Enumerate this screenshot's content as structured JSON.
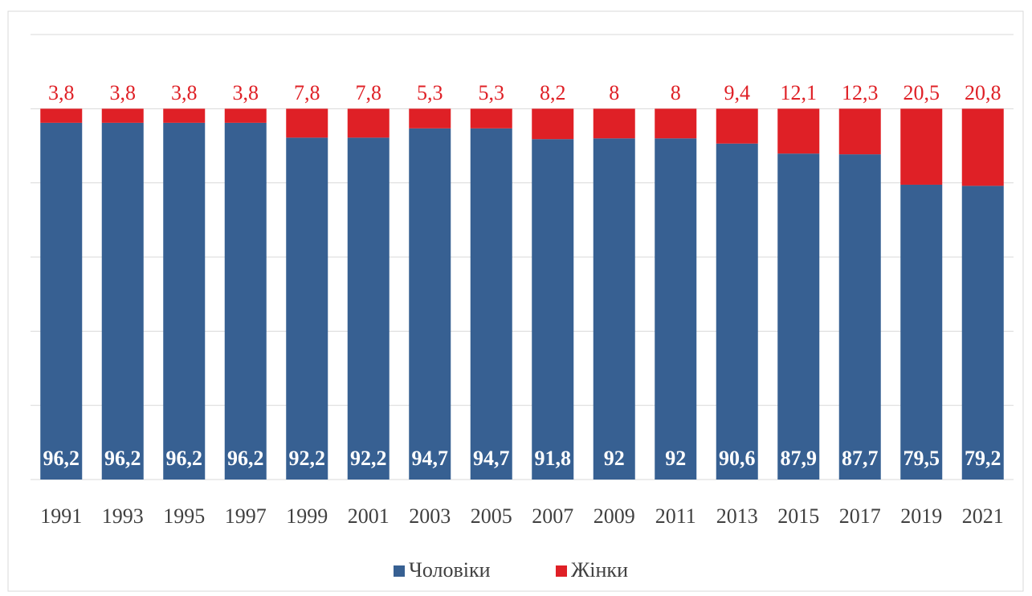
{
  "chart_data": {
    "type": "stacked_bar",
    "categories": [
      "1991",
      "1993",
      "1995",
      "1997",
      "1999",
      "2001",
      "2003",
      "2005",
      "2007",
      "2009",
      "2011",
      "2013",
      "2015",
      "2017",
      "2019",
      "2021"
    ],
    "series": [
      {
        "name": "Чоловіки",
        "color": "#376092",
        "values": [
          96.2,
          96.2,
          96.2,
          96.2,
          92.2,
          92.2,
          94.7,
          94.7,
          91.8,
          92,
          92,
          90.6,
          87.9,
          87.7,
          79.5,
          79.2
        ],
        "value_labels": [
          "96,2",
          "96,2",
          "96,2",
          "96,2",
          "92,2",
          "92,2",
          "94,7",
          "94,7",
          "91,8",
          "92",
          "92",
          "90,6",
          "87,9",
          "87,7",
          "79,5",
          "79,2"
        ]
      },
      {
        "name": "Жінки",
        "color": "#df2026",
        "values": [
          3.8,
          3.8,
          3.8,
          3.8,
          7.8,
          7.8,
          5.3,
          5.3,
          8.2,
          8,
          8,
          9.4,
          12.1,
          12.3,
          20.5,
          20.8
        ],
        "value_labels": [
          "3,8",
          "3,8",
          "3,8",
          "3,8",
          "7,8",
          "7,8",
          "5,3",
          "5,3",
          "8,2",
          "8",
          "8",
          "9,4",
          "12,1",
          "12,3",
          "20,5",
          "20,8"
        ]
      }
    ],
    "ylim": [
      0,
      120
    ],
    "yticks": [
      0,
      20,
      40,
      60,
      80,
      100,
      120
    ],
    "grid": true,
    "legend": "bottom"
  }
}
